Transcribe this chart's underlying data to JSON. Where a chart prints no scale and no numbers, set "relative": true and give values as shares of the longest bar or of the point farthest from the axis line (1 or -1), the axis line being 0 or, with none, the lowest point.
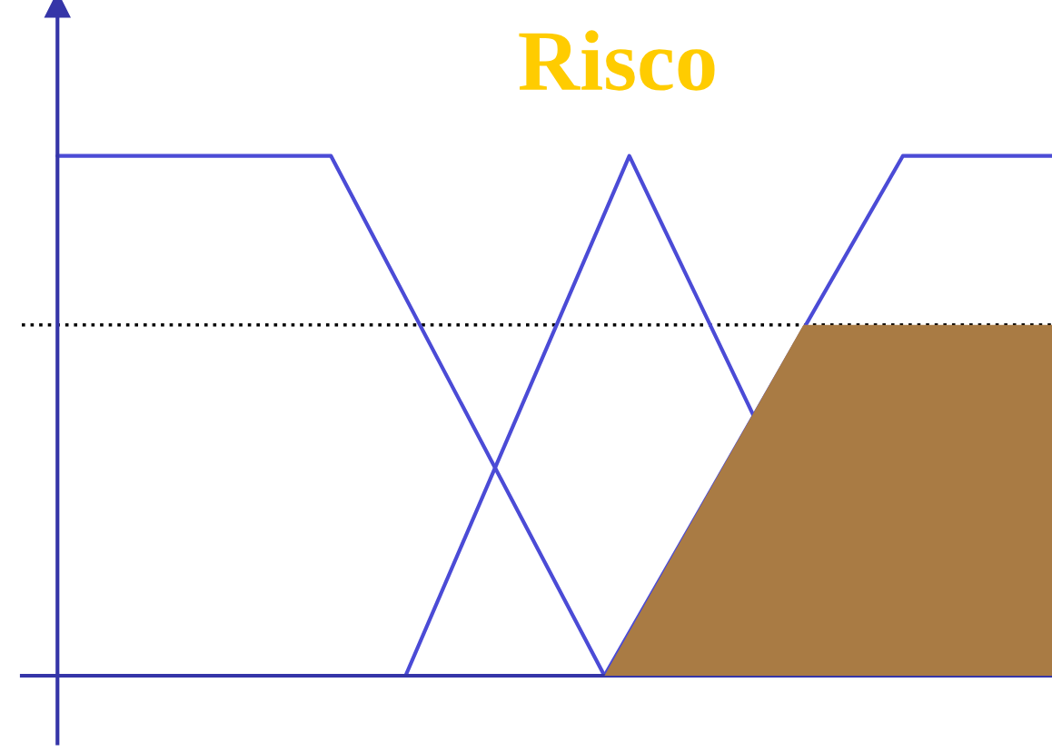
{
  "chart_data": {
    "type": "line",
    "title": "Risco",
    "relative": true,
    "legend": false,
    "marker": "none",
    "line_style": "solid",
    "categories": [
      null,
      null,
      null,
      null,
      null,
      null,
      null,
      null,
      null,
      null,
      null,
      null,
      null,
      null,
      null,
      null,
      null,
      null,
      null,
      null,
      null,
      null,
      null,
      null,
      null,
      null,
      null,
      null,
      null,
      null,
      null,
      null,
      null,
      null,
      null,
      null,
      null,
      null,
      null,
      null,
      null
    ],
    "series": [
      {
        "color": "#4b4bd6",
        "values": [
          1,
          null,
          null,
          null,
          null,
          null,
          null,
          null,
          null,
          null,
          null,
          1,
          null,
          null,
          null,
          null,
          null,
          null,
          null,
          null,
          null,
          null,
          0,
          null,
          null,
          null,
          null,
          null,
          null,
          null,
          null,
          null,
          null,
          null,
          null,
          null,
          null,
          null,
          null,
          null,
          null
        ]
      },
      {
        "color": "#4b4bd6",
        "values": [
          null,
          null,
          null,
          null,
          null,
          null,
          null,
          null,
          null,
          null,
          null,
          null,
          null,
          null,
          0,
          null,
          null,
          null,
          null,
          null,
          null,
          null,
          null,
          1,
          null,
          null,
          null,
          null,
          0.5,
          null,
          null,
          null,
          null,
          null,
          null,
          null,
          null,
          null,
          null,
          null,
          null
        ]
      },
      {
        "color": "#4b4bd6",
        "values": [
          null,
          null,
          null,
          null,
          null,
          null,
          null,
          null,
          null,
          null,
          null,
          null,
          null,
          null,
          null,
          null,
          null,
          null,
          null,
          null,
          null,
          null,
          0,
          null,
          null,
          null,
          null,
          null,
          null,
          null,
          null,
          null,
          null,
          null,
          1,
          null,
          null,
          null,
          null,
          null,
          1
        ]
      },
      {
        "type": "area",
        "color": "#a97b44",
        "values": [
          null,
          null,
          null,
          null,
          null,
          null,
          null,
          null,
          null,
          null,
          null,
          null,
          null,
          null,
          null,
          null,
          null,
          null,
          null,
          null,
          null,
          null,
          0,
          null,
          null,
          null,
          null,
          null,
          null,
          null,
          0.675,
          null,
          null,
          null,
          null,
          null,
          null,
          null,
          null,
          null,
          0.675
        ]
      }
    ],
    "ref_lines": [
      {
        "axis": "y",
        "value": 0.675,
        "color": "#000000",
        "line_style": "dotted"
      }
    ]
  }
}
